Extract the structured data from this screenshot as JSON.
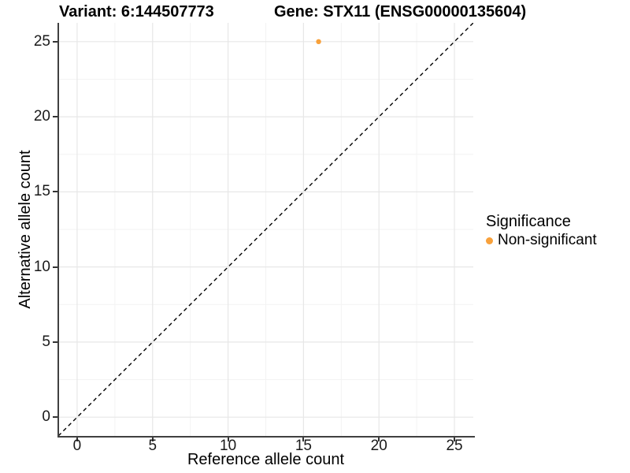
{
  "titles": {
    "variant": "Variant: 6:144507773",
    "gene": "Gene: STX11 (ENSG00000135604)"
  },
  "chart_data": {
    "type": "scatter",
    "title_left": "Variant: 6:144507773",
    "title_right": "Gene: STX11 (ENSG00000135604)",
    "xlabel": "Reference allele count",
    "ylabel": "Alternative allele count",
    "xlim": [
      -1.25,
      26.25
    ],
    "ylim": [
      -1.25,
      26.25
    ],
    "xticks": [
      0,
      5,
      10,
      15,
      20,
      25
    ],
    "yticks": [
      0,
      5,
      10,
      15,
      20,
      25
    ],
    "x_minor_ticks": [
      2.5,
      7.5,
      12.5,
      17.5,
      22.5
    ],
    "y_minor_ticks": [
      2.5,
      7.5,
      12.5,
      17.5,
      22.5
    ],
    "grid": "major and minor, light gray on white",
    "series": [
      {
        "name": "Non-significant",
        "color": "#F8A13B",
        "points": [
          {
            "x": 16,
            "y": 25
          }
        ]
      }
    ],
    "reference_line": {
      "kind": "identity y=x diagonal",
      "style": "dashed",
      "color": "#000000",
      "from": [
        -1.25,
        -1.25
      ],
      "to": [
        26.25,
        26.25
      ]
    },
    "legend": {
      "title": "Significance",
      "position": "right",
      "entries": [
        {
          "label": "Non-significant",
          "color": "#F8A13B"
        }
      ]
    },
    "style": {
      "axis_color": "#404040",
      "tick_color": "#333333",
      "grid_major_color": "#e7e7e7",
      "grid_minor_color": "#f3f3f3",
      "point_radius_px": 3.2,
      "background": "#ffffff"
    }
  }
}
